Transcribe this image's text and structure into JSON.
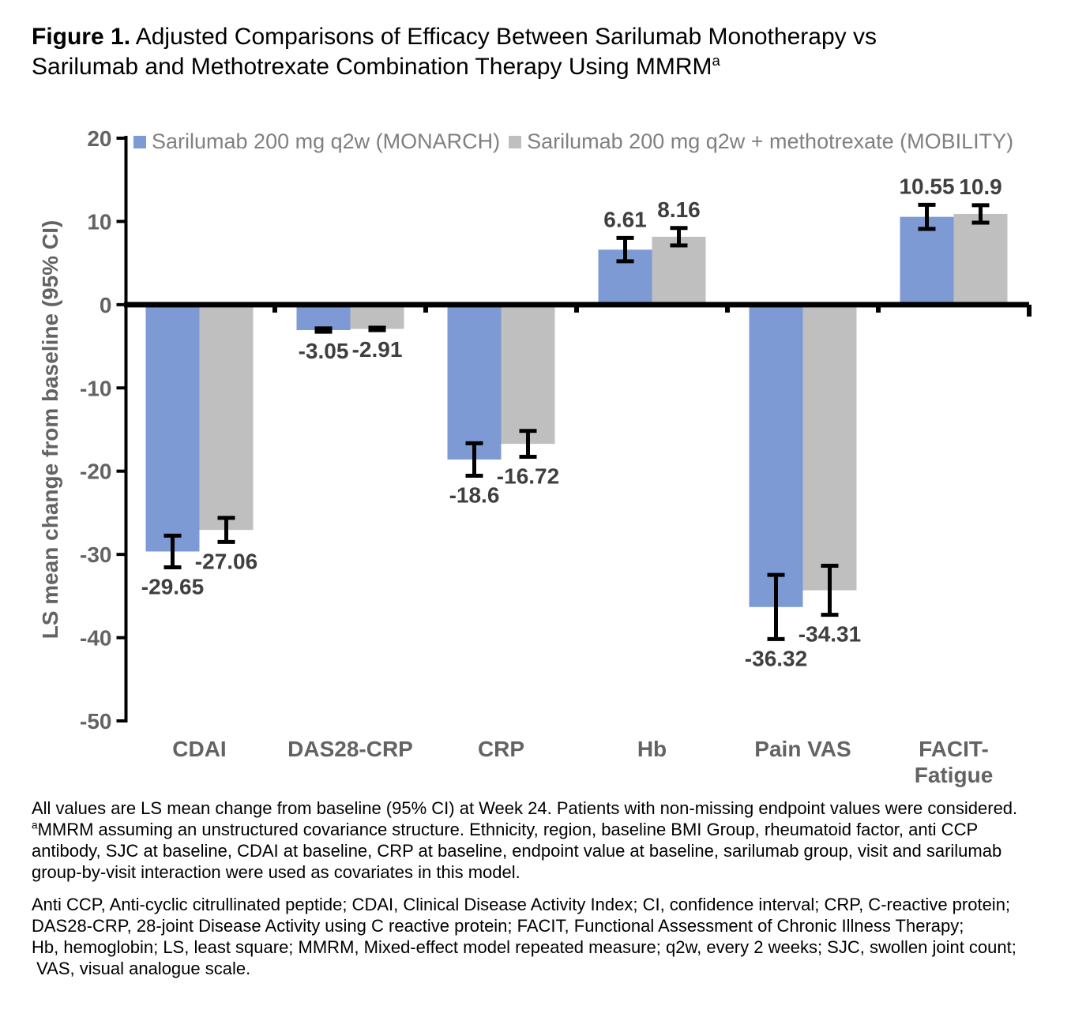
{
  "figure": {
    "label": "Figure 1.",
    "title_rest": " Adjusted Comparisons of Efficacy Between Sarilumab Monotherapy vs\nSarilumab and Methotrexate Combination Therapy Using MMRM",
    "title_superscript": "a"
  },
  "legend": {
    "items": [
      {
        "label": "Sarilumab 200 mg q2w (MONARCH)",
        "color": "#7D9AD4"
      },
      {
        "label": "Sarilumab 200 mg q2w + methotrexate (MOBILITY)",
        "color": "#BFBFBF"
      }
    ]
  },
  "chart_data": {
    "type": "bar",
    "title": "",
    "xlabel": "",
    "ylabel": "LS mean change from baseline (95% CI)",
    "ylim": [
      -50,
      20
    ],
    "yticks": [
      20,
      10,
      0,
      -10,
      -20,
      -30,
      -40,
      -50
    ],
    "grid": false,
    "legend_position": "top-left",
    "error_bars": "95% CI",
    "categories": [
      "CDAI",
      "DAS28-CRP",
      "CRP",
      "Hb",
      "Pain VAS",
      "FACIT-\nFatigue"
    ],
    "series": [
      {
        "name": "Sarilumab 200 mg q2w (MONARCH)",
        "color": "#7D9AD4",
        "values": [
          -29.65,
          -3.05,
          -18.6,
          6.61,
          -36.32,
          10.55
        ],
        "value_labels": [
          "-29.65",
          "-3.05",
          "-18.6",
          "6.61",
          "-36.32",
          "10.55"
        ],
        "ci_half_width": [
          1.9,
          0.2,
          1.95,
          1.4,
          3.85,
          1.45
        ]
      },
      {
        "name": "Sarilumab 200 mg q2w + methotrexate (MOBILITY)",
        "color": "#BFBFBF",
        "values": [
          -27.06,
          -2.91,
          -16.72,
          8.16,
          -34.31,
          10.9
        ],
        "value_labels": [
          "-27.06",
          "-2.91",
          "-16.72",
          "8.16",
          "-34.31",
          "10.9"
        ],
        "ci_half_width": [
          1.45,
          0.15,
          1.55,
          1.05,
          2.95,
          1.05
        ]
      }
    ]
  },
  "footnotes": {
    "para1_part1": "All values are LS mean change from baseline (95% CI) at Week 24. Patients with non-missing endpoint values were considered.\n",
    "para1_superscript": "a",
    "para1_part2": "MMRM assuming an unstructured covariance structure. Ethnicity, region, baseline BMI Group, rheumatoid factor, anti CCP\nantibody, SJC at baseline, CDAI at baseline, CRP at baseline, endpoint value at baseline, sarilumab group, visit and sarilumab\ngroup-by-visit interaction were used as covariates in this model.",
    "para2": "Anti CCP, Anti-cyclic citrullinated peptide; CDAI, Clinical Disease Activity Index; CI, confidence interval; CRP, C-reactive protein;\nDAS28-CRP, 28-joint Disease Activity using C reactive protein; FACIT, Functional Assessment of Chronic Illness Therapy;\nHb, hemoglobin; LS, least square; MMRM, Mixed-effect model repeated measure; q2w, every 2 weeks; SJC, swollen joint count;\n VAS, visual analogue scale."
  },
  "colors": {
    "axis": "#000000",
    "tick_label": "#636363",
    "category_label": "#636363",
    "axis_title": "#636363",
    "data_label": "#3f3f3f",
    "legend_text": "#808080",
    "series_blue": "#7D9AD4",
    "series_gray": "#BFBFBF"
  }
}
